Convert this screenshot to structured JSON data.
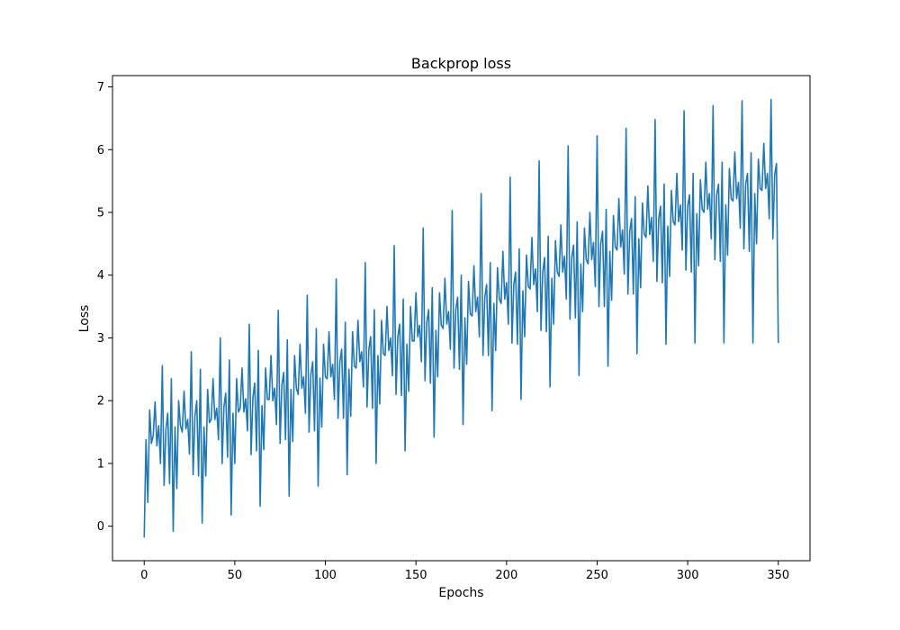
{
  "chart_data": {
    "type": "line",
    "title": "Backprop loss",
    "xlabel": "Epochs",
    "ylabel": "Loss",
    "xlim": [
      -17.5,
      367.5
    ],
    "ylim": [
      -0.55,
      7.18
    ],
    "xticks": [
      0,
      50,
      100,
      150,
      200,
      250,
      300,
      350
    ],
    "yticks": [
      0,
      1,
      2,
      3,
      4,
      5,
      6,
      7
    ],
    "grid": false,
    "legend": "none",
    "series": [
      {
        "color": "#1f77b4",
        "x_start": 0,
        "x_step": 1,
        "values": [
          -0.18,
          1.38,
          0.38,
          1.85,
          1.32,
          1.45,
          1.98,
          1.28,
          1.6,
          1.0,
          2.56,
          0.65,
          1.55,
          1.8,
          0.68,
          2.35,
          -0.08,
          1.58,
          0.6,
          2.0,
          1.6,
          1.5,
          2.15,
          1.55,
          1.7,
          1.15,
          2.78,
          0.82,
          1.75,
          2.0,
          0.8,
          2.5,
          0.05,
          1.58,
          0.8,
          2.18,
          1.65,
          1.7,
          2.35,
          1.7,
          1.88,
          1.38,
          3.0,
          1.0,
          1.9,
          2.12,
          1.1,
          2.65,
          0.18,
          1.8,
          1.0,
          2.35,
          1.82,
          1.88,
          2.52,
          1.82,
          2.03,
          1.52,
          3.22,
          1.14,
          2.05,
          2.28,
          1.2,
          2.8,
          0.32,
          1.92,
          1.22,
          2.52,
          2.02,
          2.02,
          2.72,
          2.0,
          2.2,
          1.62,
          3.44,
          1.32,
          2.25,
          2.45,
          1.38,
          2.97,
          0.48,
          2.18,
          1.35,
          2.72,
          2.2,
          2.1,
          2.9,
          2.2,
          2.38,
          1.8,
          3.68,
          1.5,
          2.42,
          2.62,
          1.52,
          3.15,
          0.64,
          2.36,
          1.58,
          2.9,
          2.38,
          2.35,
          3.1,
          2.38,
          2.58,
          2.02,
          3.94,
          1.72,
          2.62,
          2.82,
          1.72,
          3.25,
          0.82,
          2.5,
          1.75,
          3.1,
          2.55,
          2.52,
          3.28,
          2.62,
          2.78,
          2.22,
          4.2,
          1.9,
          2.82,
          3.02,
          1.88,
          3.45,
          1.0,
          2.72,
          1.95,
          3.28,
          2.75,
          2.72,
          3.5,
          2.8,
          3.0,
          2.4,
          4.47,
          2.1,
          3.02,
          3.22,
          2.08,
          3.62,
          1.2,
          2.9,
          2.15,
          3.5,
          2.95,
          2.95,
          3.72,
          3.02,
          3.2,
          2.62,
          4.75,
          2.32,
          3.25,
          3.45,
          2.28,
          3.8,
          1.42,
          3.12,
          2.38,
          3.72,
          3.2,
          3.15,
          3.95,
          3.22,
          3.42,
          2.82,
          5.03,
          2.52,
          3.45,
          3.65,
          2.5,
          4.0,
          1.62,
          3.32,
          2.58,
          3.9,
          3.38,
          3.35,
          4.15,
          3.42,
          3.65,
          3.02,
          5.3,
          2.72,
          3.65,
          3.85,
          2.72,
          4.2,
          1.84,
          3.55,
          2.8,
          4.12,
          3.62,
          3.55,
          4.38,
          3.62,
          3.88,
          3.22,
          5.56,
          2.92,
          3.85,
          4.05,
          2.9,
          4.42,
          2.02,
          3.75,
          3.02,
          4.32,
          3.82,
          3.78,
          4.6,
          3.85,
          4.1,
          3.42,
          5.82,
          3.12,
          4.05,
          4.28,
          3.1,
          4.62,
          2.22,
          3.95,
          3.22,
          4.55,
          4.05,
          3.98,
          4.8,
          4.05,
          4.3,
          3.62,
          6.06,
          3.3,
          4.28,
          4.48,
          3.32,
          4.85,
          2.4,
          4.18,
          3.42,
          4.75,
          4.25,
          4.18,
          5.0,
          4.25,
          4.52,
          3.82,
          6.22,
          3.5,
          4.5,
          4.7,
          3.5,
          5.05,
          2.55,
          4.38,
          3.6,
          4.95,
          4.45,
          4.4,
          5.22,
          4.45,
          4.72,
          4.02,
          6.34,
          3.7,
          4.7,
          4.9,
          3.7,
          5.25,
          2.75,
          4.58,
          3.8,
          5.15,
          4.65,
          4.6,
          5.42,
          4.65,
          4.92,
          4.22,
          6.48,
          3.9,
          4.9,
          5.1,
          3.88,
          5.45,
          2.9,
          4.78,
          3.98,
          5.35,
          4.85,
          4.8,
          5.62,
          4.85,
          5.12,
          4.4,
          6.62,
          4.08,
          5.1,
          5.28,
          4.05,
          5.62,
          2.92,
          4.98,
          4.15,
          5.52,
          5.05,
          5.0,
          5.8,
          5.05,
          5.3,
          4.58,
          6.7,
          4.25,
          5.28,
          5.45,
          4.22,
          5.8,
          2.92,
          5.12,
          4.32,
          5.7,
          5.22,
          5.18,
          5.96,
          5.22,
          5.48,
          4.75,
          6.78,
          4.42,
          5.45,
          5.62,
          4.38,
          5.95,
          2.92,
          5.3,
          4.5,
          5.85,
          5.38,
          5.35,
          6.1,
          5.38,
          5.62,
          4.9,
          6.8,
          4.58,
          5.6,
          5.78,
          2.92
        ]
      }
    ]
  }
}
